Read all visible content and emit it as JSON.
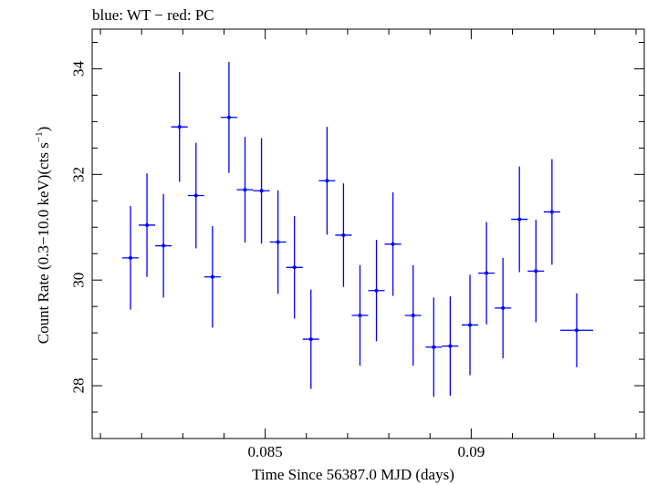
{
  "chart_data": {
    "type": "scatter",
    "title": "blue: WT − red: PC",
    "xlabel": "Time Since 56387.0 MJD (days)",
    "ylabel_main": "Count Rate (0.3−10.0 keV)(cts s",
    "ylabel_sup": "−1",
    "ylabel_close": ")",
    "xlim": [
      0.0808,
      0.0942
    ],
    "ylim": [
      27.0,
      34.75
    ],
    "xticks": [
      0.085,
      0.09
    ],
    "xtick_labels": [
      "0.085",
      "0.09"
    ],
    "yticks": [
      28,
      30,
      32,
      34
    ],
    "ytick_labels": [
      "28",
      "30",
      "32",
      "34"
    ],
    "color": "#0000ff",
    "series": [
      {
        "name": "WT",
        "color": "#0000ff",
        "points": [
          {
            "x": 0.08173,
            "xerr": 0.0002,
            "y": 30.42,
            "yerr": 0.98
          },
          {
            "x": 0.08213,
            "xerr": 0.0002,
            "y": 31.04,
            "yerr": 0.98
          },
          {
            "x": 0.08253,
            "xerr": 0.0002,
            "y": 30.65,
            "yerr": 0.98
          },
          {
            "x": 0.08292,
            "xerr": 0.0002,
            "y": 32.9,
            "yerr": 1.04
          },
          {
            "x": 0.08332,
            "xerr": 0.0002,
            "y": 31.6,
            "yerr": 1.0
          },
          {
            "x": 0.08372,
            "xerr": 0.0002,
            "y": 30.06,
            "yerr": 0.96
          },
          {
            "x": 0.08412,
            "xerr": 0.0002,
            "y": 33.08,
            "yerr": 1.05
          },
          {
            "x": 0.08451,
            "xerr": 0.0002,
            "y": 31.71,
            "yerr": 1.0
          },
          {
            "x": 0.08491,
            "xerr": 0.0002,
            "y": 31.69,
            "yerr": 1.0
          },
          {
            "x": 0.08531,
            "xerr": 0.0002,
            "y": 30.72,
            "yerr": 0.98
          },
          {
            "x": 0.08571,
            "xerr": 0.0002,
            "y": 30.24,
            "yerr": 0.97
          },
          {
            "x": 0.08611,
            "xerr": 0.0002,
            "y": 28.88,
            "yerr": 0.94
          },
          {
            "x": 0.0865,
            "xerr": 0.0002,
            "y": 31.88,
            "yerr": 1.02
          },
          {
            "x": 0.0869,
            "xerr": 0.0002,
            "y": 30.85,
            "yerr": 0.98
          },
          {
            "x": 0.0873,
            "xerr": 0.0002,
            "y": 29.33,
            "yerr": 0.95
          },
          {
            "x": 0.0877,
            "xerr": 0.0002,
            "y": 29.8,
            "yerr": 0.96
          },
          {
            "x": 0.0881,
            "xerr": 0.0002,
            "y": 30.68,
            "yerr": 0.98
          },
          {
            "x": 0.08859,
            "xerr": 0.0002,
            "y": 29.33,
            "yerr": 0.95
          },
          {
            "x": 0.08909,
            "xerr": 0.0002,
            "y": 28.73,
            "yerr": 0.94
          },
          {
            "x": 0.08949,
            "xerr": 0.0002,
            "y": 28.75,
            "yerr": 0.94
          },
          {
            "x": 0.08997,
            "xerr": 0.0002,
            "y": 29.15,
            "yerr": 0.95
          },
          {
            "x": 0.09037,
            "xerr": 0.0002,
            "y": 30.13,
            "yerr": 0.97
          },
          {
            "x": 0.09077,
            "xerr": 0.0002,
            "y": 29.47,
            "yerr": 0.95
          },
          {
            "x": 0.09117,
            "xerr": 0.0002,
            "y": 31.15,
            "yerr": 1.0
          },
          {
            "x": 0.09157,
            "xerr": 0.0002,
            "y": 30.17,
            "yerr": 0.97
          },
          {
            "x": 0.09196,
            "xerr": 0.0002,
            "y": 31.29,
            "yerr": 1.0
          },
          {
            "x": 0.09256,
            "xerr": 0.0004,
            "y": 29.05,
            "yerr": 0.7
          }
        ]
      }
    ]
  }
}
